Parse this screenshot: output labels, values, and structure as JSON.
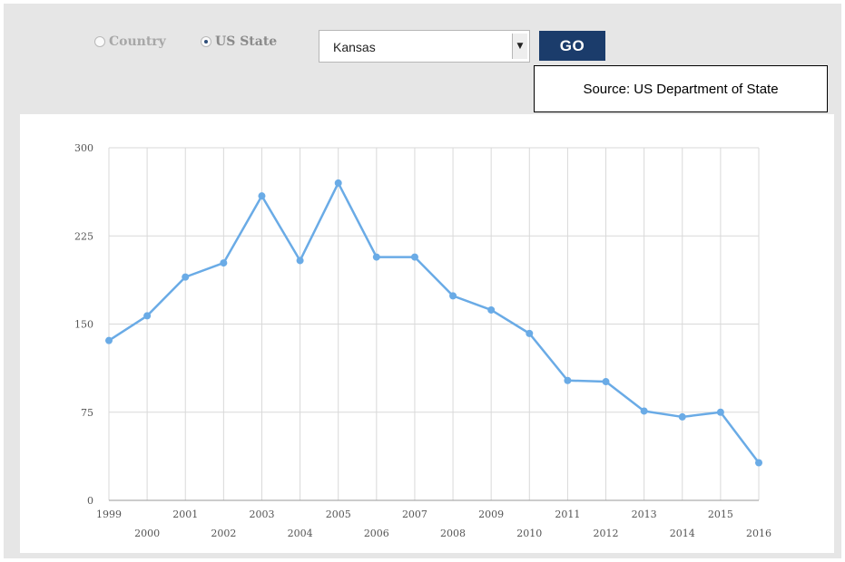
{
  "controls": {
    "country_label": "Country",
    "state_label": "US State",
    "selected": "US State",
    "state_select_value": "Kansas",
    "go_label": "GO"
  },
  "source_note": "Source: US Department of State",
  "colors": {
    "line": "#6aabe6",
    "button": "#1b3c6b",
    "grid": "#d9d9d9"
  },
  "chart_data": {
    "type": "line",
    "x": [
      1999,
      2000,
      2001,
      2002,
      2003,
      2004,
      2005,
      2006,
      2007,
      2008,
      2009,
      2010,
      2011,
      2012,
      2013,
      2014,
      2015,
      2016
    ],
    "series": [
      {
        "values": [
          136,
          157,
          190,
          202,
          259,
          204,
          270,
          207,
          207,
          174,
          162,
          142,
          102,
          101,
          76,
          71,
          75,
          32
        ]
      }
    ],
    "ylim": [
      0,
      300
    ],
    "yticks": [
      0,
      75,
      150,
      225,
      300
    ],
    "grid": true,
    "title": "",
    "xlabel": "",
    "ylabel": ""
  }
}
